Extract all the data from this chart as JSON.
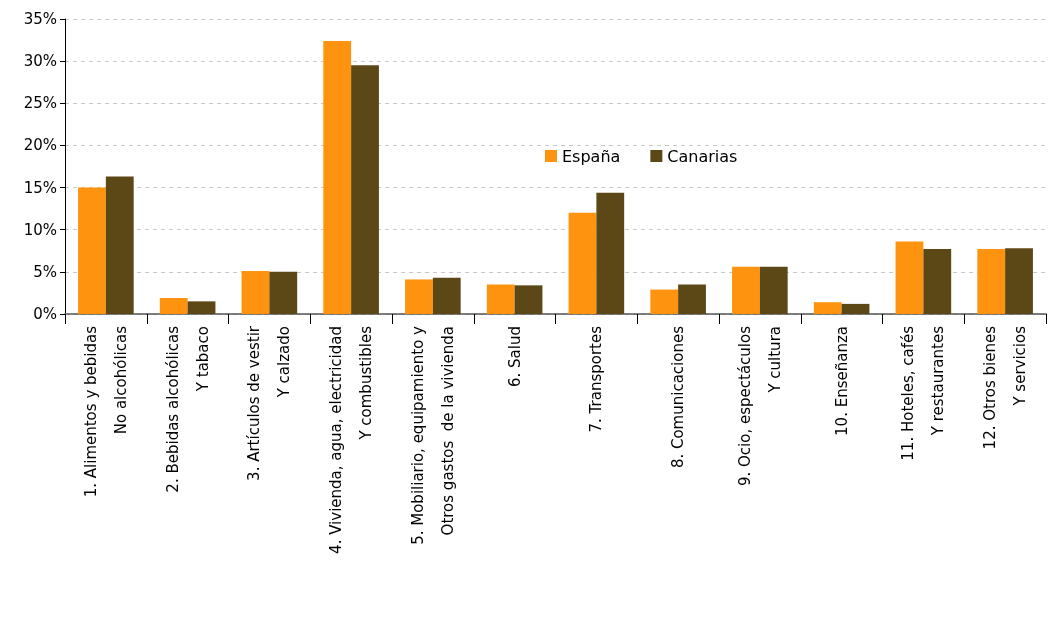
{
  "chart_data": {
    "type": "bar",
    "categories": [
      "1. Alimentos y bebidas\nNo alcohólicas",
      "2. Bebidas alcohólicas\nY tabaco",
      "3. Artículos de vestir\nY calzado",
      "4. Vivienda, agua, electricidad\nY combustibles",
      "5. Mobiliario, equipamiento y\nOtros gastos  de la vivienda",
      "6. Salud",
      "7. Transportes",
      "8. Comunicaciones",
      "9. Ocio, espectáculos\nY cultura",
      "10. Enseñanza",
      "11. Hoteles, cafés\nY restaurantes",
      "12. Otros bienes\nY servicios"
    ],
    "series": [
      {
        "name": "España",
        "color": "#fe930f",
        "values": [
          15.0,
          1.9,
          5.1,
          32.4,
          4.1,
          3.5,
          12.0,
          2.9,
          5.6,
          1.4,
          8.6,
          7.7
        ]
      },
      {
        "name": "Canarias",
        "color": "#5c4716",
        "values": [
          16.3,
          1.5,
          5.0,
          29.5,
          4.3,
          3.4,
          14.4,
          3.5,
          5.6,
          1.2,
          7.7,
          7.8
        ]
      }
    ],
    "ylim": [
      0,
      35
    ],
    "yticks": [
      {
        "value": 0,
        "label": "0%"
      },
      {
        "value": 5,
        "label": "5%"
      },
      {
        "value": 10,
        "label": "10%"
      },
      {
        "value": 15,
        "label": "15%"
      },
      {
        "value": 20,
        "label": "20%"
      },
      {
        "value": 25,
        "label": "25%"
      },
      {
        "value": 30,
        "label": "30%"
      },
      {
        "value": 35,
        "label": "35%"
      }
    ],
    "grid": "y",
    "legend": "center"
  }
}
